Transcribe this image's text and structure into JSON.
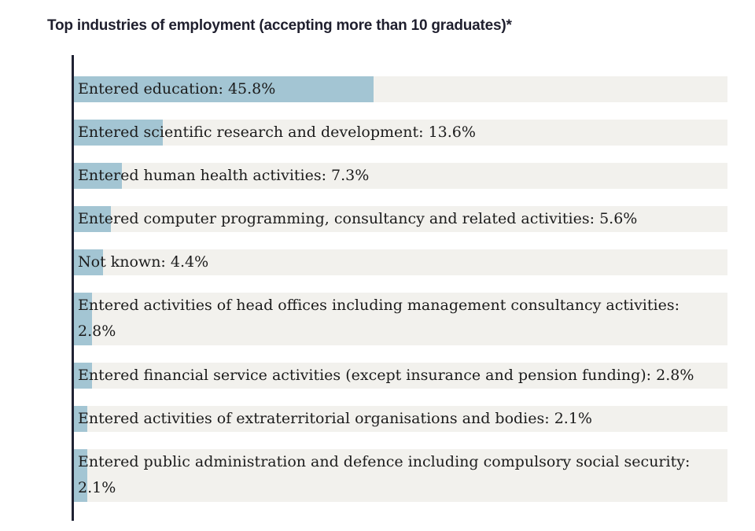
{
  "chart_data": {
    "type": "bar",
    "orientation": "horizontal",
    "title": "Top industries of employment (accepting more than 10 graduates)*",
    "xlim": [
      0,
      100
    ],
    "grid": false,
    "colors": {
      "bar": "#a3c5d3",
      "track": "#f2f1ed",
      "axis": "#1f2233"
    },
    "categories": [
      "Entered education",
      "Entered scientific research and development",
      "Entered human health activities",
      "Entered computer programming, consultancy and related activities",
      "Not known",
      "Entered activities of head offices including management consultancy activities",
      "Entered financial service activities (except insurance and pension funding)",
      "Entered activities of extraterritorial organisations and bodies",
      "Entered public administration and defence including compulsory social security"
    ],
    "values": [
      45.8,
      13.6,
      7.3,
      5.6,
      4.4,
      2.8,
      2.8,
      2.1,
      2.1
    ],
    "labels": [
      "Entered education: 45.8%",
      "Entered scientific research and development: 13.6%",
      "Entered human health activities: 7.3%",
      "Entered computer programming, consultancy and related activities: 5.6%",
      "Not known: 4.4%",
      "Entered activities of head offices including management consultancy activities: 2.8%",
      "Entered financial service activities (except insurance and pension funding): 2.8%",
      "Entered activities of extraterritorial organisations and bodies: 2.1%",
      "Entered public administration and defence including compulsory social security: 2.1%"
    ]
  }
}
